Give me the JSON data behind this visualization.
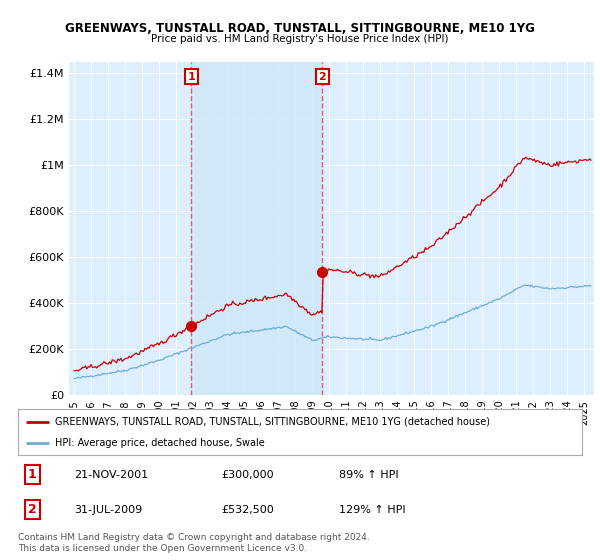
{
  "title": "GREENWAYS, TUNSTALL ROAD, TUNSTALL, SITTINGBOURNE, ME10 1YG",
  "subtitle": "Price paid vs. HM Land Registry's House Price Index (HPI)",
  "ylim": [
    0,
    1450000
  ],
  "xlim_start": 1994.7,
  "xlim_end": 2025.6,
  "yticks": [
    0,
    200000,
    400000,
    600000,
    800000,
    1000000,
    1200000,
    1400000
  ],
  "xtick_years": [
    1995,
    1996,
    1997,
    1998,
    1999,
    2000,
    2001,
    2002,
    2003,
    2004,
    2005,
    2006,
    2007,
    2008,
    2009,
    2010,
    2011,
    2012,
    2013,
    2014,
    2015,
    2016,
    2017,
    2018,
    2019,
    2020,
    2021,
    2022,
    2023,
    2024,
    2025
  ],
  "red_line_color": "#cc0000",
  "blue_line_color": "#6baed6",
  "shade_color": "#d0e8f8",
  "transaction1_x": 2001.9,
  "transaction1_y": 300000,
  "transaction2_x": 2009.6,
  "transaction2_y": 532500,
  "vline_color": "#e06060",
  "legend_label_red": "GREENWAYS, TUNSTALL ROAD, TUNSTALL, SITTINGBOURNE, ME10 1YG (detached house)",
  "legend_label_blue": "HPI: Average price, detached house, Swale",
  "table_row1": [
    "1",
    "21-NOV-2001",
    "£300,000",
    "89% ↑ HPI"
  ],
  "table_row2": [
    "2",
    "31-JUL-2009",
    "£532,500",
    "129% ↑ HPI"
  ],
  "footnote": "Contains HM Land Registry data © Crown copyright and database right 2024.\nThis data is licensed under the Open Government Licence v3.0.",
  "background_color": "#ffffff",
  "plot_bg_color": "#ddeeff"
}
